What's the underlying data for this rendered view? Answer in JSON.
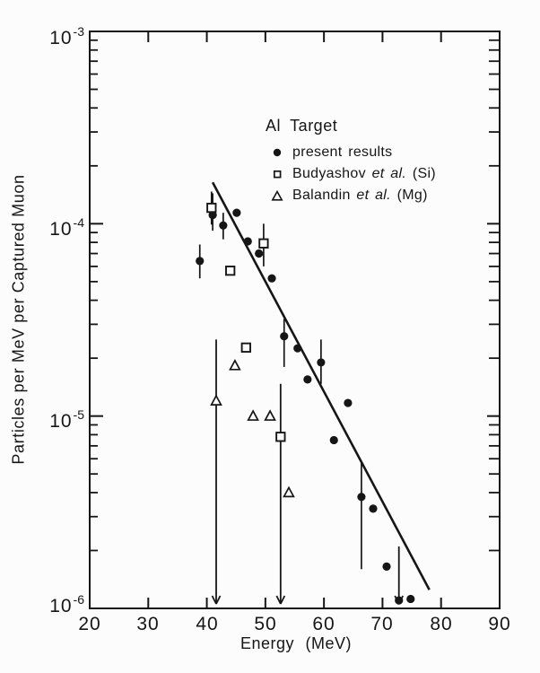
{
  "figure": {
    "x_axis_title": "Energy (MeV)",
    "y_axis_title": "Particles per MeV per Captured Muon",
    "x_tick_labels": [
      "20",
      "30",
      "40",
      "50",
      "60",
      "70",
      "80",
      "90"
    ],
    "y_tick_labels": [
      {
        "base": "10",
        "exp": "-3"
      },
      {
        "base": "10",
        "exp": "-4"
      },
      {
        "base": "10",
        "exp": "-5"
      },
      {
        "base": "10",
        "exp": "-6"
      }
    ],
    "ink_color": "#161616",
    "paper_color": "#fcfcfc"
  },
  "legend": {
    "title": "Al Target",
    "items": [
      {
        "marker": "filled-circle",
        "pre": "present results",
        "italic": "",
        "post": ""
      },
      {
        "marker": "open-square",
        "pre": "Budyashov ",
        "italic": "et al.",
        "post": " (Si)"
      },
      {
        "marker": "open-triangle",
        "pre": "Balandin ",
        "italic": "et al.",
        "post": " (Mg)"
      }
    ]
  },
  "chart_data": {
    "type": "scatter",
    "title": "Al Target",
    "xlabel": "Energy (MeV)",
    "ylabel": "Particles per MeV per Captured Muon",
    "x_scale": "linear",
    "y_scale": "log",
    "xlim": [
      20,
      90
    ],
    "ylim": [
      1e-06,
      0.001
    ],
    "x_ticks": [
      20,
      30,
      40,
      50,
      60,
      70,
      80,
      90
    ],
    "y_decades": [
      -3,
      -4,
      -5,
      -6
    ],
    "grid": false,
    "legend_position": "upper right",
    "series": [
      {
        "name": "present results",
        "marker": "filled-circle",
        "points": [
          {
            "x": 38.8,
            "y": 6.4e-05,
            "y_hi": 7.8e-05,
            "y_lo": 5.2e-05
          },
          {
            "x": 41.0,
            "y": 0.000111,
            "y_hi": 0.000144,
            "y_lo": 9.2e-05
          },
          {
            "x": 42.8,
            "y": 9.8e-05,
            "y_hi": 0.000114,
            "y_lo": 8.3e-05
          },
          {
            "x": 45.1,
            "y": 0.000114
          },
          {
            "x": 47.0,
            "y": 8.1e-05
          },
          {
            "x": 48.9,
            "y": 7e-05
          },
          {
            "x": 51.1,
            "y": 5.2e-05
          },
          {
            "x": 53.2,
            "y": 2.6e-05,
            "y_hi": 3.2e-05,
            "y_lo": 1.8e-05
          },
          {
            "x": 55.5,
            "y": 2.25e-05
          },
          {
            "x": 57.2,
            "y": 1.55e-05
          },
          {
            "x": 59.5,
            "y": 1.9e-05,
            "y_hi": 2.5e-05,
            "y_lo": 1.47e-05
          },
          {
            "x": 61.7,
            "y": 7.5e-06
          },
          {
            "x": 64.1,
            "y": 1.17e-05
          },
          {
            "x": 66.4,
            "y": 3.8e-06,
            "y_hi": 5.7e-06,
            "y_lo": 1.6e-06
          },
          {
            "x": 68.4,
            "y": 3.3e-06
          },
          {
            "x": 70.7,
            "y": 1.65e-06
          },
          {
            "x": 72.8,
            "y": 1.1e-06,
            "y_hi": 2.1e-06,
            "arrow_down": true
          },
          {
            "x": 74.8,
            "y": 1.12e-06
          }
        ]
      },
      {
        "name": "Budyashov et al. (Si)",
        "marker": "open-square",
        "points": [
          {
            "x": 40.8,
            "y": 0.000121,
            "y_hi": 0.000147,
            "y_lo": 9.9e-05
          },
          {
            "x": 44.0,
            "y": 5.7e-05
          },
          {
            "x": 46.7,
            "y": 2.27e-05
          },
          {
            "x": 49.7,
            "y": 7.9e-05,
            "y_hi": 0.0001,
            "y_lo": 6e-05
          },
          {
            "x": 52.6,
            "y": 7.8e-06,
            "y_hi": 1.47e-05,
            "arrow_down": true
          }
        ]
      },
      {
        "name": "Balandin et al. (Mg)",
        "marker": "open-triangle",
        "points": [
          {
            "x": 41.6,
            "y": 1.2e-05,
            "y_hi": 2.5e-05,
            "arrow_down": true
          },
          {
            "x": 44.8,
            "y": 1.83e-05
          },
          {
            "x": 47.9,
            "y": 1e-05
          },
          {
            "x": 50.8,
            "y": 1e-05
          },
          {
            "x": 54.0,
            "y": 4e-06
          }
        ]
      }
    ],
    "fit_line": {
      "x1": 41.0,
      "y1": 0.000164,
      "x2": 78.0,
      "y2": 1.25e-06
    }
  }
}
